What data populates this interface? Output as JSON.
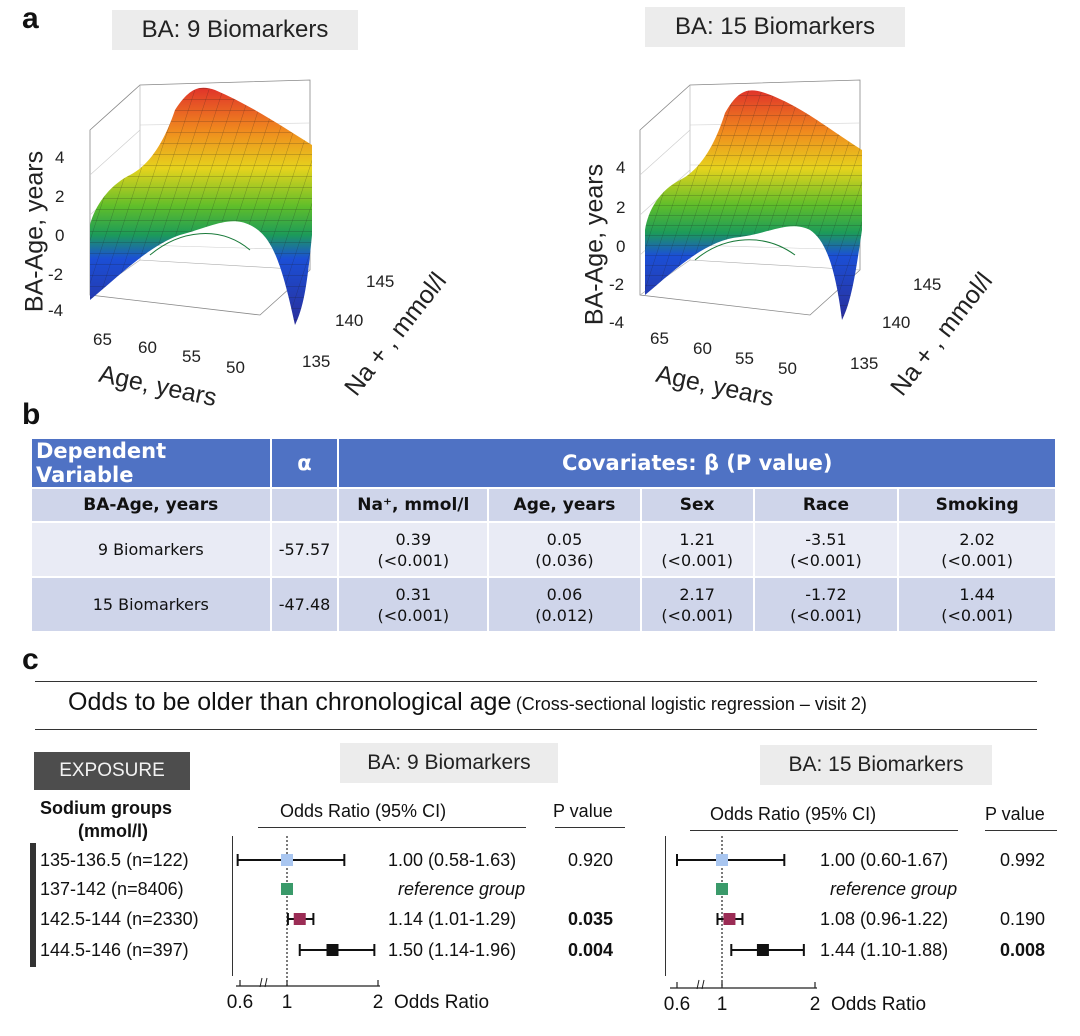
{
  "panel_a": {
    "letter": "a",
    "plots": [
      {
        "title": "BA: 9 Biomarkers",
        "z_label": "BA-Age, years",
        "z_ticks": [
          "4",
          "2",
          "0",
          "-2",
          "-4"
        ],
        "age_label": "Age, years",
        "age_ticks": [
          "65",
          "60",
          "55",
          "50"
        ],
        "na_label": "Na + , mmol/l",
        "na_ticks": [
          "145",
          "140",
          "135"
        ]
      },
      {
        "title": "BA: 15 Biomarkers",
        "z_label": "BA-Age, years",
        "z_ticks": [
          "4",
          "2",
          "0",
          "-2",
          "-4"
        ],
        "age_label": "Age, years",
        "age_ticks": [
          "65",
          "60",
          "55",
          "50"
        ],
        "na_label": "Na + , mmol/l",
        "na_ticks": [
          "145",
          "140",
          "135"
        ]
      }
    ]
  },
  "panel_b": {
    "letter": "b",
    "header": {
      "dependent": "Dependent Variable",
      "alpha": "α",
      "covariates": "Covariates: β (P value)"
    },
    "subheader": [
      "BA-Age, years",
      "",
      "Na⁺, mmol/l",
      "Age, years",
      "Sex",
      "Race",
      "Smoking"
    ],
    "rows": [
      {
        "label": "9 Biomarkers",
        "alpha": "-57.57",
        "cells": [
          {
            "beta": "0.39",
            "p": "(<0.001)"
          },
          {
            "beta": "0.05",
            "p": "(0.036)"
          },
          {
            "beta": "1.21",
            "p": "(<0.001)"
          },
          {
            "beta": "-3.51",
            "p": "(<0.001)"
          },
          {
            "beta": "2.02",
            "p": "(<0.001)"
          }
        ]
      },
      {
        "label": "15 Biomarkers",
        "alpha": "-47.48",
        "cells": [
          {
            "beta": "0.31",
            "p": "(<0.001)"
          },
          {
            "beta": "0.06",
            "p": "(0.012)"
          },
          {
            "beta": "2.17",
            "p": "(<0.001)"
          },
          {
            "beta": "-1.72",
            "p": "(<0.001)"
          },
          {
            "beta": "1.44",
            "p": "(<0.001)"
          }
        ]
      }
    ]
  },
  "panel_c": {
    "letter": "c",
    "title_main": "Odds to be older than chronological age",
    "title_paren": "(Cross-sectional logistic regression – visit 2)",
    "exposure_badge": "EXPOSURE",
    "groups_heading_1": "Sodium groups",
    "groups_heading_2": "(mmol/l)",
    "groups": [
      "135-136.5 (n=122)",
      "137-142 (n=8406)",
      "142.5-144 (n=2330)",
      "144.5-146 (n=397)"
    ],
    "or_heading": "Odds Ratio (95% CI)",
    "p_heading": "P value",
    "axis_label": "Odds Ratio",
    "axis_ticks": [
      "0.6",
      "1",
      "2"
    ],
    "reference_text": "reference group",
    "colors": {
      "group1": "#a9c6f0",
      "group2": "#3a9a6a",
      "group3": "#9b2c55",
      "group4": "#111111"
    }
  },
  "chart_data": [
    {
      "type": "forest",
      "title": "BA: 9 Biomarkers",
      "xlabel": "Odds Ratio",
      "x_ticks": [
        0.6,
        1,
        2
      ],
      "rows": [
        {
          "group": "135-136.5 (n=122)",
          "or": 1.0,
          "lo": 0.58,
          "hi": 1.63,
          "label": "1.00 (0.58-1.63)",
          "p": "0.920",
          "p_bold": false
        },
        {
          "group": "137-142 (n=8406)",
          "or": 1.0,
          "lo": null,
          "hi": null,
          "label": "reference group",
          "p": "",
          "p_bold": false
        },
        {
          "group": "142.5-144 (n=2330)",
          "or": 1.14,
          "lo": 1.01,
          "hi": 1.29,
          "label": "1.14 (1.01-1.29)",
          "p": "0.035",
          "p_bold": true
        },
        {
          "group": "144.5-146 (n=397)",
          "or": 1.5,
          "lo": 1.14,
          "hi": 1.96,
          "label": "1.50 (1.14-1.96)",
          "p": "0.004",
          "p_bold": true
        }
      ]
    },
    {
      "type": "forest",
      "title": "BA: 15 Biomarkers",
      "xlabel": "Odds Ratio",
      "x_ticks": [
        0.6,
        1,
        2
      ],
      "rows": [
        {
          "group": "135-136.5 (n=122)",
          "or": 1.0,
          "lo": 0.6,
          "hi": 1.67,
          "label": "1.00 (0.60-1.67)",
          "p": "0.992",
          "p_bold": false
        },
        {
          "group": "137-142 (n=8406)",
          "or": 1.0,
          "lo": null,
          "hi": null,
          "label": "reference group",
          "p": "",
          "p_bold": false
        },
        {
          "group": "142.5-144 (n=2330)",
          "or": 1.08,
          "lo": 0.96,
          "hi": 1.22,
          "label": "1.08 (0.96-1.22)",
          "p": "0.190",
          "p_bold": false
        },
        {
          "group": "144.5-146 (n=397)",
          "or": 1.44,
          "lo": 1.1,
          "hi": 1.88,
          "label": "1.44 (1.10-1.88)",
          "p": "0.008",
          "p_bold": true
        }
      ]
    }
  ]
}
